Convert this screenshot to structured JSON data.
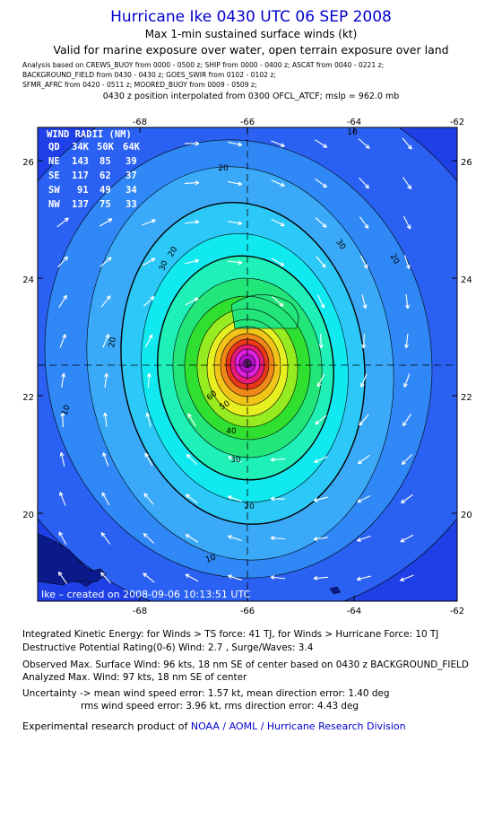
{
  "header": {
    "title": "Hurricane Ike 0430 UTC 06 SEP 2008",
    "subtitle1": "Max 1-min sustained surface winds (kt)",
    "subtitle2": "Valid for marine exposure over water, open terrain exposure over land",
    "analysis_lines": [
      "Analysis based on  CREWS_BUOY from 0000 - 0500 z;  SHIP from 0000 - 0400 z;  ASCAT from 0040 - 0221 z;",
      "BACKGROUND_FIELD from 0430 - 0430 z;  GOES_SWIR from 0102 - 0102 z;",
      "SFMR_AFRC from 0420 - 0511 z;  MOORED_BUOY from 0009 - 0509 z;"
    ],
    "position_line": "0430 z position interpolated from 0300 OFCL_ATCF; mslp = 962.0 mb"
  },
  "map": {
    "lon_ticks": [
      "-68",
      "-66",
      "-64",
      "-62"
    ],
    "lat_ticks": [
      "26",
      "24",
      "22",
      "20"
    ],
    "center": {
      "lon": -66.0,
      "lat": 22.55
    },
    "contour_labels": [
      "10",
      "20",
      "20",
      "20",
      "20",
      "20",
      "30",
      "30",
      "30",
      "40",
      "50",
      "60",
      "10",
      "10"
    ],
    "credit": "Ike – created on 2008-09-06 10:13:51 UTC",
    "colors": {
      "background": "#1e40e6",
      "levels": [
        "#2b61f2",
        "#3088f6",
        "#3aa9f8",
        "#2cc8f8",
        "#10e9f0",
        "#1ef0b8",
        "#22e67a",
        "#30e030",
        "#96ec20",
        "#e6f020",
        "#f0c418",
        "#f08818",
        "#e83818",
        "#e81a78",
        "#e020e0",
        "#b010c8"
      ]
    }
  },
  "wind_radii": {
    "header": "WIND RADII (NM)",
    "columns": [
      "QD",
      "34K",
      "50K",
      "64K"
    ],
    "rows": [
      [
        "NE",
        "143",
        "85",
        "39"
      ],
      [
        "SE",
        "117",
        "62",
        "37"
      ],
      [
        "SW",
        "91",
        "49",
        "34"
      ],
      [
        "NW",
        "137",
        "75",
        "33"
      ]
    ]
  },
  "footer": {
    "ike_line": "Integrated Kinetic Energy:  for Winds > TS force: 41 TJ,  for Winds > Hurricane Force: 10 TJ",
    "dpr_line": "Destructive Potential Rating(0-6)   Wind: 2.7 , Surge/Waves: 3.4",
    "observed_line": "Observed Max. Surface Wind: 96 kts, 18 nm SE of center based on 0430 z BACKGROUND_FIELD",
    "analyzed_line": "Analyzed Max. Wind: 97 kts, 18 nm SE of center",
    "uncertainty_line": "Uncertainty -> mean wind speed error: 1.57 kt,   mean direction error: 1.40 deg",
    "rms_line": "rms wind speed error: 3.96 kt,   rms direction error: 4.43 deg",
    "product_prefix": "Experimental research product of",
    "product_link": "NOAA / AOML / Hurricane Research Division"
  }
}
